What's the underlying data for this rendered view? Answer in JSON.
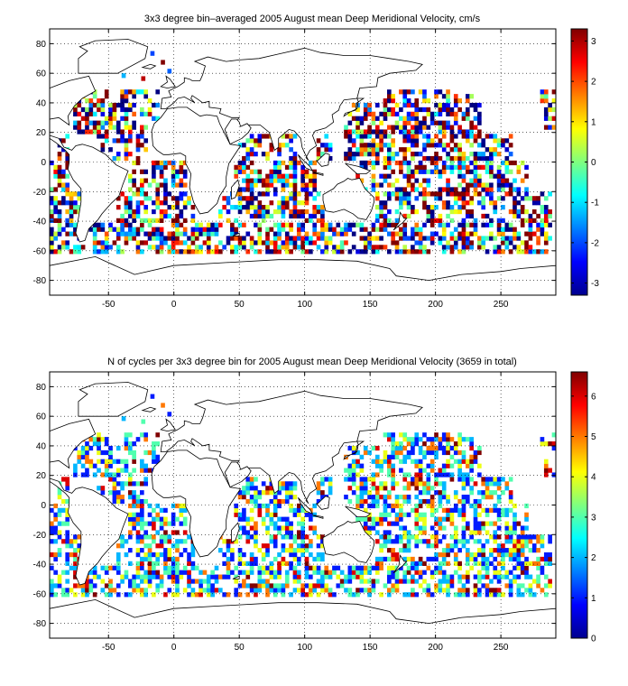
{
  "chart_data": [
    {
      "type": "heatmap",
      "title": "3x3 degree bin–averaged 2005 August mean Deep Meridional Velocity, cm/s",
      "xlim": [
        -95,
        292
      ],
      "ylim": [
        -90,
        90
      ],
      "x_ticks": [
        -50,
        0,
        50,
        100,
        150,
        200,
        250
      ],
      "y_ticks": [
        -80,
        -60,
        -40,
        -20,
        0,
        20,
        40,
        60,
        80
      ],
      "colorbar": {
        "min": -3.3,
        "max": 3.3,
        "ticks": [
          -3,
          -2,
          -1,
          0,
          1,
          2,
          3
        ],
        "colormap": "jet"
      },
      "grid": true,
      "bin_size_deg": 3,
      "region_lon_spans_by_lat_band": [
        {
          "lat": [
            40,
            50
          ],
          "lon": [
            [
              -78,
              -50
            ],
            [
              -40,
              -10
            ],
            [
              160,
              230
            ],
            [
              280,
              292
            ]
          ]
        },
        {
          "lat": [
            20,
            40
          ],
          "lon": [
            [
              -78,
              -30
            ],
            [
              -25,
              -10
            ],
            [
              130,
              235
            ],
            [
              282,
              292
            ]
          ]
        },
        {
          "lat": [
            0,
            20
          ],
          "lon": [
            [
              -90,
              -80
            ],
            [
              -60,
              -20
            ],
            [
              50,
              95
            ],
            [
              110,
              120
            ],
            [
              130,
              260
            ]
          ]
        },
        {
          "lat": [
            -20,
            0
          ],
          "lon": [
            [
              -95,
              -80
            ],
            [
              -35,
              10
            ],
            [
              45,
              110
            ],
            [
              140,
              270
            ]
          ]
        },
        {
          "lat": [
            -40,
            -20
          ],
          "lon": [
            [
              -95,
              -72
            ],
            [
              -45,
              15
            ],
            [
              35,
              115
            ],
            [
              155,
              290
            ]
          ]
        },
        {
          "lat": [
            -62,
            -40
          ],
          "lon": [
            [
              -95,
              -60
            ],
            [
              -60,
              20
            ],
            [
              20,
              160
            ],
            [
              160,
              290
            ]
          ]
        }
      ]
    },
    {
      "type": "heatmap",
      "title": "N of cycles per 3x3 degree bin for 2005 August mean Deep Meridional Velocity (3659 in total)",
      "xlim": [
        -95,
        292
      ],
      "ylim": [
        -90,
        90
      ],
      "x_ticks": [
        -50,
        0,
        50,
        100,
        150,
        200,
        250
      ],
      "y_ticks": [
        -80,
        -60,
        -40,
        -20,
        0,
        20,
        40,
        60,
        80
      ],
      "colorbar": {
        "min": 0,
        "max": 6.6,
        "ticks": [
          0,
          1,
          2,
          3,
          4,
          5,
          6
        ],
        "colormap": "jet"
      },
      "grid": true,
      "bin_size_deg": 3,
      "total_cycles": 3659
    }
  ]
}
